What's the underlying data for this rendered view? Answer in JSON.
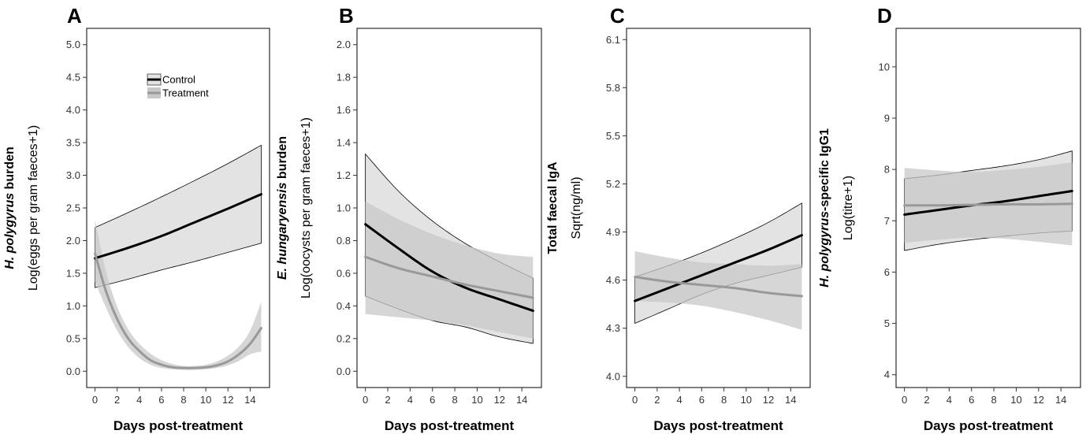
{
  "colors": {
    "control_line": "#000000",
    "treatment_line": "#999999",
    "control_band": "#e3e3e3",
    "treatment_band": "#c8c8c8",
    "overlap_band": "#c9c9c9"
  },
  "legend": {
    "entries": [
      "Control",
      "Treatment"
    ],
    "placement": "top-center of panel A"
  },
  "chart_data": [
    {
      "type": "line",
      "panel": "A",
      "ylabel_bold": "H. polygyrus burden",
      "ylabel_bold_italic": "H. polygyrus",
      "ylabel_bold_rest": " burden",
      "ylabel": "Log(eggs per gram faeces+1)",
      "xlabel": "Days post-treatment",
      "xlim": [
        -0.75,
        15.75
      ],
      "ylim": [
        -0.25,
        5.25
      ],
      "xticks": [
        0,
        2,
        4,
        6,
        8,
        10,
        12,
        14
      ],
      "yticks": [
        0.0,
        0.5,
        1.0,
        1.5,
        2.0,
        2.5,
        3.0,
        3.5,
        4.0,
        4.5,
        5.0
      ],
      "ytick_labels": [
        "0.0",
        "0.5",
        "1.0",
        "1.5",
        "2.0",
        "2.5",
        "3.0",
        "3.5",
        "4.0",
        "4.5",
        "5.0"
      ],
      "grid": false,
      "series": [
        {
          "name": "Control",
          "x": [
            0,
            3,
            6,
            9,
            12,
            15
          ],
          "y": [
            1.73,
            1.89,
            2.07,
            2.28,
            2.49,
            2.71
          ],
          "lower": [
            1.28,
            1.41,
            1.55,
            1.68,
            1.82,
            1.96
          ],
          "upper": [
            2.2,
            2.43,
            2.67,
            2.92,
            3.18,
            3.46
          ]
        },
        {
          "name": "Treatment",
          "x": [
            0,
            1,
            2,
            3,
            4,
            5,
            6,
            7,
            8,
            9,
            10,
            11,
            12,
            13,
            14,
            15
          ],
          "y": [
            1.8,
            1.22,
            0.8,
            0.5,
            0.31,
            0.17,
            0.1,
            0.06,
            0.05,
            0.05,
            0.06,
            0.09,
            0.15,
            0.26,
            0.42,
            0.66
          ],
          "lower": [
            1.37,
            0.97,
            0.62,
            0.37,
            0.2,
            0.1,
            0.05,
            0.03,
            0.02,
            0.02,
            0.03,
            0.05,
            0.09,
            0.16,
            0.26,
            0.3
          ],
          "upper": [
            2.32,
            1.52,
            0.99,
            0.64,
            0.42,
            0.27,
            0.17,
            0.11,
            0.08,
            0.08,
            0.1,
            0.15,
            0.24,
            0.38,
            0.62,
            1.06
          ]
        }
      ]
    },
    {
      "type": "line",
      "panel": "B",
      "ylabel_bold_italic": "E. hungaryensis",
      "ylabel_bold_rest": " burden",
      "ylabel": "Log(oocysts per gram faeces+1)",
      "xlabel": "Days post-treatment",
      "xlim": [
        -0.75,
        15.75
      ],
      "ylim": [
        -0.1,
        2.1
      ],
      "xticks": [
        0,
        2,
        4,
        6,
        8,
        10,
        12,
        14
      ],
      "yticks": [
        0.0,
        0.2,
        0.4,
        0.6,
        0.8,
        1.0,
        1.2,
        1.4,
        1.6,
        1.8,
        2.0
      ],
      "ytick_labels": [
        "0.0",
        "0.2",
        "0.4",
        "0.6",
        "0.8",
        "1.0",
        "1.2",
        "1.4",
        "1.6",
        "1.8",
        "2.0"
      ],
      "grid": false,
      "series": [
        {
          "name": "Control",
          "x": [
            0,
            3,
            6,
            9,
            12,
            15
          ],
          "y": [
            0.9,
            0.75,
            0.61,
            0.51,
            0.44,
            0.37
          ],
          "lower": [
            0.46,
            0.38,
            0.31,
            0.27,
            0.21,
            0.17
          ],
          "upper": [
            1.33,
            1.1,
            0.92,
            0.78,
            0.67,
            0.57
          ]
        },
        {
          "name": "Treatment",
          "x": [
            0,
            3,
            6,
            9,
            12,
            15
          ],
          "y": [
            0.7,
            0.63,
            0.58,
            0.53,
            0.49,
            0.45
          ],
          "lower": [
            0.35,
            0.33,
            0.31,
            0.28,
            0.24,
            0.2
          ],
          "upper": [
            1.04,
            0.93,
            0.84,
            0.77,
            0.72,
            0.7
          ]
        }
      ]
    },
    {
      "type": "line",
      "panel": "C",
      "ylabel_bold": "Total faecal IgA",
      "ylabel": "Sqrt(ng/ml)",
      "xlabel": "Days post-treatment",
      "xlim": [
        -0.75,
        15.75
      ],
      "ylim": [
        3.93,
        6.17
      ],
      "xticks": [
        0,
        2,
        4,
        6,
        8,
        10,
        12,
        14
      ],
      "yticks": [
        4.0,
        4.3,
        4.6,
        4.9,
        5.2,
        5.5,
        5.8,
        6.1
      ],
      "ytick_labels": [
        "4.0",
        "4.3",
        "4.6",
        "4.9",
        "5.2",
        "5.5",
        "5.8",
        "6.1"
      ],
      "grid": false,
      "series": [
        {
          "name": "Control",
          "x": [
            0,
            3,
            6,
            9,
            12,
            15
          ],
          "y": [
            4.47,
            4.55,
            4.63,
            4.71,
            4.79,
            4.88
          ],
          "lower": [
            4.33,
            4.42,
            4.51,
            4.58,
            4.63,
            4.68
          ],
          "upper": [
            4.62,
            4.69,
            4.77,
            4.86,
            4.96,
            5.08
          ]
        },
        {
          "name": "Treatment",
          "x": [
            0,
            3,
            6,
            9,
            12,
            15
          ],
          "y": [
            4.62,
            4.59,
            4.57,
            4.55,
            4.52,
            4.5
          ],
          "lower": [
            4.47,
            4.46,
            4.44,
            4.4,
            4.35,
            4.29
          ],
          "upper": [
            4.78,
            4.74,
            4.71,
            4.7,
            4.69,
            4.7
          ]
        }
      ]
    },
    {
      "type": "line",
      "panel": "D",
      "ylabel_bold_italic": "H. polygyrus",
      "ylabel_bold_rest": "-specific IgG1",
      "ylabel": "Log(titre+1)",
      "xlabel": "Days post-treatment",
      "xlim": [
        -0.75,
        15.75
      ],
      "ylim": [
        3.75,
        10.75
      ],
      "xticks": [
        0,
        2,
        4,
        6,
        8,
        10,
        12,
        14
      ],
      "yticks": [
        4,
        5,
        6,
        7,
        8,
        9,
        10
      ],
      "ytick_labels": [
        "4",
        "5",
        "6",
        "7",
        "8",
        "9",
        "10"
      ],
      "grid": false,
      "series": [
        {
          "name": "Control",
          "x": [
            0,
            3,
            6,
            9,
            12,
            15
          ],
          "y": [
            7.12,
            7.21,
            7.3,
            7.38,
            7.48,
            7.58
          ],
          "lower": [
            6.42,
            6.54,
            6.63,
            6.7,
            6.76,
            6.8
          ],
          "upper": [
            7.82,
            7.89,
            7.98,
            8.07,
            8.19,
            8.36
          ]
        },
        {
          "name": "Treatment",
          "x": [
            0,
            3,
            6,
            9,
            12,
            15
          ],
          "y": [
            7.3,
            7.3,
            7.31,
            7.32,
            7.32,
            7.33
          ],
          "lower": [
            6.57,
            6.63,
            6.67,
            6.65,
            6.59,
            6.52
          ],
          "upper": [
            8.03,
            7.98,
            7.95,
            7.99,
            8.05,
            8.14
          ]
        }
      ]
    }
  ]
}
